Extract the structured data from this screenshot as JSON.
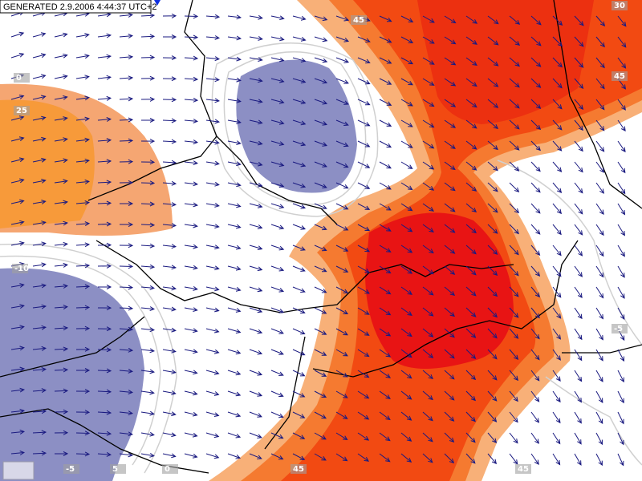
{
  "header": {
    "generated": "GENERATED 2.9.2006 4:44:37 UTC+2"
  },
  "contour_labels": [
    "45",
    "30",
    "45",
    "0",
    "25",
    "-10",
    "-5",
    "-5",
    "5",
    "0",
    "45",
    "45"
  ]
}
